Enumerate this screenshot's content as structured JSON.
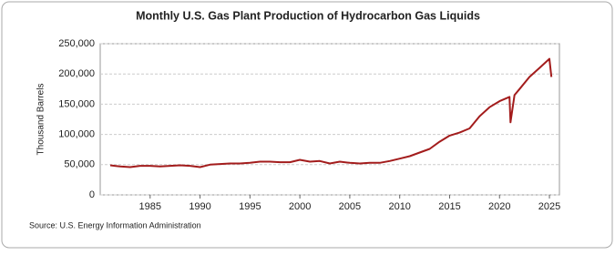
{
  "chart_data": {
    "type": "line",
    "title": "Monthly U.S. Gas Plant Production of Hydrocarbon Gas Liquids",
    "y_label": "Thousand Barrels",
    "source": "Source: U.S. Energy Information Administration",
    "x": [
      1981,
      1982,
      1983,
      1984,
      1985,
      1986,
      1987,
      1988,
      1989,
      1990,
      1991,
      1992,
      1993,
      1994,
      1995,
      1996,
      1997,
      1998,
      1999,
      2000,
      2001,
      2002,
      2003,
      2004,
      2005,
      2006,
      2007,
      2008,
      2009,
      2010,
      2011,
      2012,
      2013,
      2014,
      2015,
      2016,
      2017,
      2018,
      2019,
      2020,
      2021,
      2021.1,
      2021.5,
      2022,
      2023,
      2024,
      2025,
      2025.2
    ],
    "series": [
      {
        "name": "Gas Plant Production",
        "color": "#a31c1c",
        "values": [
          49000,
          47000,
          46000,
          48000,
          48000,
          47000,
          48000,
          49000,
          48000,
          46000,
          50000,
          51000,
          52000,
          52000,
          53000,
          55000,
          55000,
          54000,
          54000,
          58000,
          55000,
          56000,
          52000,
          55000,
          53000,
          52000,
          53000,
          53000,
          56000,
          60000,
          64000,
          70000,
          76000,
          88000,
          98000,
          103000,
          110000,
          130000,
          145000,
          155000,
          162000,
          120000,
          165000,
          175000,
          195000,
          210000,
          225000,
          195000
        ]
      }
    ],
    "xlim": [
      1980,
      2026
    ],
    "xticks": [
      1985,
      1990,
      1995,
      2000,
      2005,
      2010,
      2015,
      2020,
      2025
    ],
    "ylim": [
      0,
      250000
    ],
    "yticks": [
      0,
      {
        "value": 50000,
        "label": "50,000"
      },
      {
        "value": 100000,
        "label": "100,000"
      },
      {
        "value": 150000,
        "label": "150,000"
      },
      {
        "value": 200000,
        "label": "200,000"
      },
      {
        "value": 250000,
        "label": "250,000"
      }
    ],
    "grid": true
  }
}
